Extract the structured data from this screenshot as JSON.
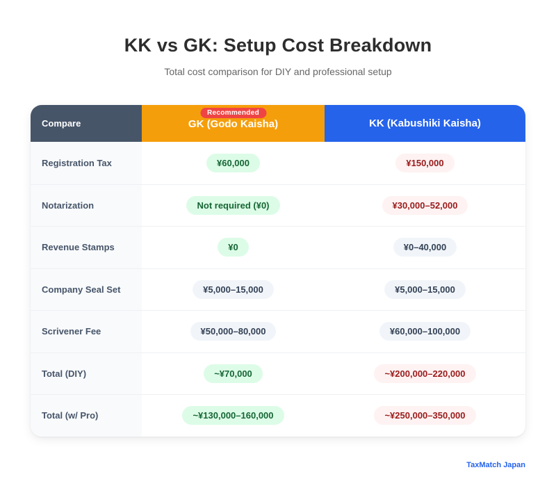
{
  "header": {
    "title": "KK vs GK: Setup Cost Breakdown",
    "subtitle": "Total cost comparison for DIY and professional setup"
  },
  "table": {
    "columns": {
      "label": "Compare",
      "gk": "GK (Godo Kaisha)",
      "gk_badge": "Recommended",
      "kk": "KK (Kabushiki Kaisha)"
    },
    "rows": [
      {
        "label": "Registration Tax",
        "gk": "¥60,000",
        "gk_tone": "good",
        "kk": "¥150,000",
        "kk_tone": "bad"
      },
      {
        "label": "Notarization",
        "gk": "Not required (¥0)",
        "gk_tone": "good",
        "kk": "¥30,000–52,000",
        "kk_tone": "bad"
      },
      {
        "label": "Revenue Stamps",
        "gk": "¥0",
        "gk_tone": "good",
        "kk": "¥0–40,000",
        "kk_tone": "neutral"
      },
      {
        "label": "Company Seal Set",
        "gk": "¥5,000–15,000",
        "gk_tone": "neutral",
        "kk": "¥5,000–15,000",
        "kk_tone": "neutral"
      },
      {
        "label": "Scrivener Fee",
        "gk": "¥50,000–80,000",
        "gk_tone": "neutral",
        "kk": "¥60,000–100,000",
        "kk_tone": "neutral"
      },
      {
        "label": "Total (DIY)",
        "gk": "~¥70,000",
        "gk_tone": "good",
        "kk": "~¥200,000–220,000",
        "kk_tone": "bad"
      },
      {
        "label": "Total (w/ Pro)",
        "gk": "~¥130,000–160,000",
        "gk_tone": "good",
        "kk": "~¥250,000–350,000",
        "kk_tone": "bad"
      }
    ]
  },
  "colors": {
    "label_header": "#475569",
    "gk_header": "#f59e0b",
    "kk_header": "#2563eb",
    "badge": "#ef4444",
    "good_bg": "#dcfce7",
    "good_text": "#166534",
    "bad_bg": "#fef2f2",
    "bad_text": "#991b1b",
    "neutral_bg": "#f1f5f9",
    "neutral_text": "#334155"
  },
  "footer": {
    "brand": "TaxMatch Japan"
  }
}
